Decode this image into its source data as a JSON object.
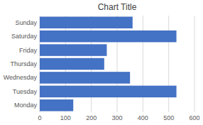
{
  "chart_data": {
    "type": "bar",
    "orientation": "horizontal",
    "title": "Chart Title",
    "categories": [
      "Monday",
      "Tuesday",
      "Wednesday",
      "Thursday",
      "Friday",
      "Saturday",
      "Sunday"
    ],
    "values": [
      130,
      530,
      350,
      250,
      260,
      530,
      360
    ],
    "color": "#4472C4",
    "xlim": [
      0,
      600
    ],
    "xticks": [
      0,
      100,
      200,
      300,
      400,
      500,
      600
    ],
    "grid": true
  }
}
